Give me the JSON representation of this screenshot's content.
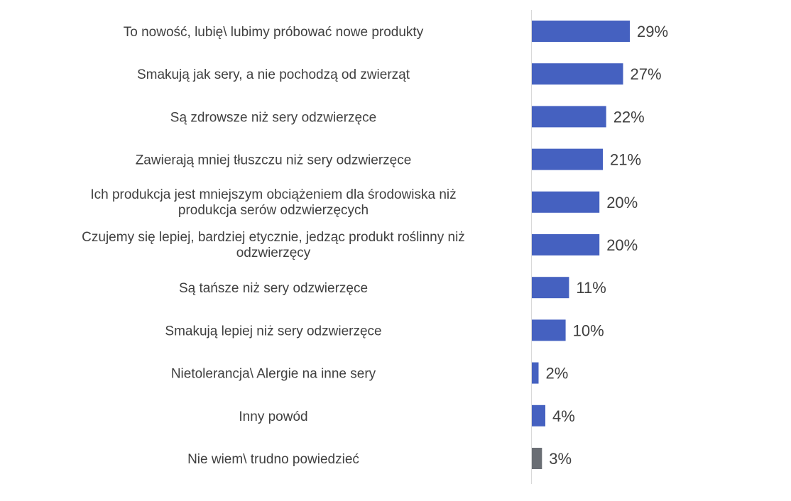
{
  "chart_data": {
    "type": "bar",
    "orientation": "horizontal",
    "title": "",
    "xlabel": "",
    "ylabel": "",
    "categories": [
      "To nowość, lubię\\ lubimy próbować nowe produkty",
      "Smakują jak sery, a nie pochodzą od zwierząt",
      "Są zdrowsze niż sery odzwierzęce",
      "Zawierają mniej tłuszczu niż sery odzwierzęce",
      "Ich produkcja jest mniejszym obciążeniem dla środowiska niż produkcja serów odzwierzęcych",
      "Czujemy się lepiej, bardziej etycznie, jedząc produkt roślinny niż odzwierzęcy",
      "Są tańsze niż sery odzwierzęce",
      "Smakują lepiej niż sery odzwierzęce",
      "Nietolerancja\\ Alergie na inne sery",
      "Inny powód",
      "Nie wiem\\ trudno powiedzieć"
    ],
    "values": [
      29,
      27,
      22,
      21,
      20,
      20,
      11,
      10,
      2,
      4,
      3
    ],
    "value_labels": [
      "29%",
      "27%",
      "22%",
      "21%",
      "20%",
      "20%",
      "11%",
      "10%",
      "2%",
      "4%",
      "3%"
    ],
    "bar_colors": [
      "#4561c0",
      "#4561c0",
      "#4561c0",
      "#4561c0",
      "#4561c0",
      "#4561c0",
      "#4561c0",
      "#4561c0",
      "#4561c0",
      "#4561c0",
      "#6a6e74"
    ],
    "axis_line_color": "#d9d9d9",
    "text_color": "#404040",
    "grid": false,
    "legend": "none"
  }
}
